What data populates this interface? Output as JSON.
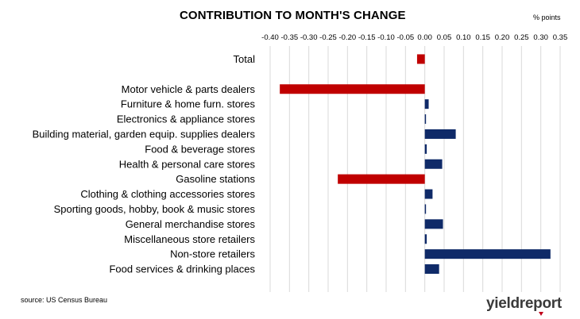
{
  "header": {
    "title": "CONTRIBUTION TO MONTH'S CHANGE",
    "units": "% points"
  },
  "footer": {
    "source": "source: US Census Bureau",
    "logo_text": "yieldreport"
  },
  "colors": {
    "positive": "#0f2a68",
    "negative": "#c00000",
    "gridline": "#d9d9d9"
  },
  "chart_data": {
    "type": "bar",
    "orientation": "horizontal",
    "title": "CONTRIBUTION TO MONTH'S CHANGE",
    "xlabel": "% points",
    "xlim": [
      -0.4,
      0.35
    ],
    "xticks": [
      "-0.40",
      "-0.35",
      "-0.30",
      "-0.25",
      "-0.20",
      "-0.15",
      "-0.10",
      "-0.05",
      "0.00",
      "0.05",
      "0.10",
      "0.15",
      "0.20",
      "0.25",
      "0.30",
      "0.35"
    ],
    "grid": true,
    "legend": "none",
    "categories": [
      "Total",
      "",
      "Motor vehicle & parts dealers",
      "Furniture & home furn. stores",
      "Electronics & appliance stores",
      "Building material, garden equip. supplies dealers",
      "Food & beverage stores",
      "Health & personal care stores",
      "Gasoline stations",
      "Clothing & clothing accessories stores",
      "Sporting goods, hobby, book & music stores",
      "General merchandise stores",
      "Miscellaneous store retailers",
      "Non-store retailers",
      "Food services & drinking places"
    ],
    "values": [
      -0.02,
      null,
      -0.375,
      0.01,
      0.003,
      0.08,
      0.005,
      0.045,
      -0.225,
      0.02,
      0.0,
      0.047,
      0.005,
      0.325,
      0.037
    ]
  }
}
